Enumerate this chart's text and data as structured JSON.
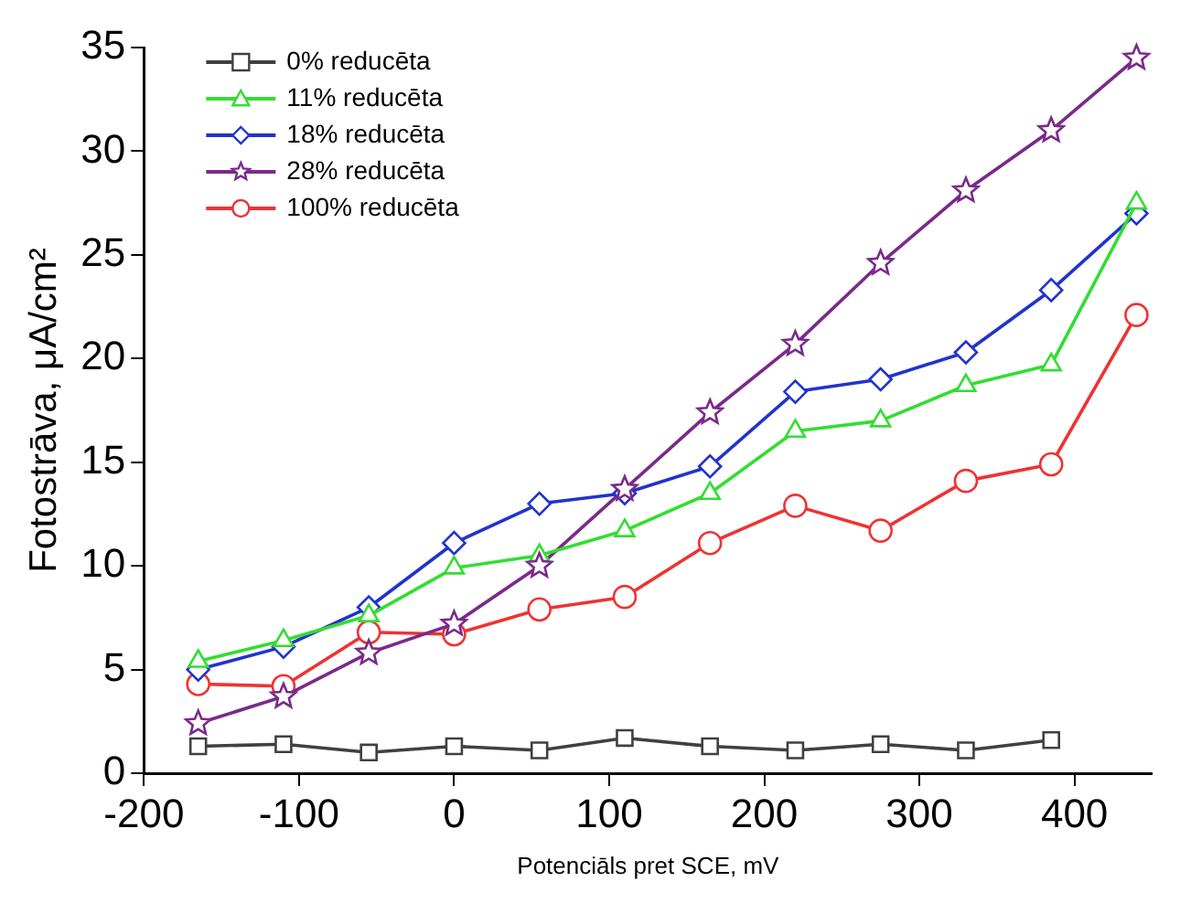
{
  "chart_data": {
    "type": "line",
    "xlabel": "Potenciāls pret SCE, mV",
    "ylabel": "Fotostrāva, μA/cm²",
    "x": [
      -165,
      -110,
      -55,
      0,
      55,
      110,
      165,
      220,
      275,
      330,
      385,
      440
    ],
    "series": [
      {
        "name": "0% reducēta",
        "color": "#404040",
        "marker": "square",
        "values": [
          1.3,
          1.4,
          1.0,
          1.3,
          1.1,
          1.7,
          1.3,
          1.1,
          1.4,
          1.1,
          1.6,
          null
        ]
      },
      {
        "name": "11% reducēta",
        "color": "#33dd33",
        "marker": "triangle",
        "values": [
          5.4,
          6.4,
          7.6,
          9.9,
          10.5,
          11.7,
          13.5,
          16.5,
          17.0,
          18.7,
          19.7,
          27.5
        ]
      },
      {
        "name": "18% reducēta",
        "color": "#2233cc",
        "marker": "diamond",
        "values": [
          5.0,
          6.1,
          8.0,
          11.1,
          13.0,
          13.5,
          14.8,
          18.4,
          19.0,
          20.3,
          23.3,
          27.0
        ]
      },
      {
        "name": "28% reducēta",
        "color": "#7a2a8a",
        "marker": "star",
        "values": [
          2.4,
          3.7,
          5.8,
          7.2,
          10.0,
          13.7,
          17.4,
          20.7,
          24.6,
          28.1,
          31.0,
          34.5
        ]
      },
      {
        "name": "100% reducēta",
        "color": "#ee3333",
        "marker": "circle",
        "values": [
          4.3,
          4.2,
          6.8,
          6.7,
          7.9,
          8.5,
          11.1,
          12.9,
          11.7,
          14.1,
          14.9,
          22.1
        ]
      }
    ],
    "xlim": [
      -200,
      450
    ],
    "xticks": [
      -200,
      -100,
      0,
      100,
      200,
      300,
      400
    ],
    "ylim": [
      0,
      35
    ],
    "yticks": [
      0,
      5,
      10,
      15,
      20,
      25,
      30,
      35
    ],
    "grid": false,
    "legend": "top left",
    "line_style": "solid"
  }
}
